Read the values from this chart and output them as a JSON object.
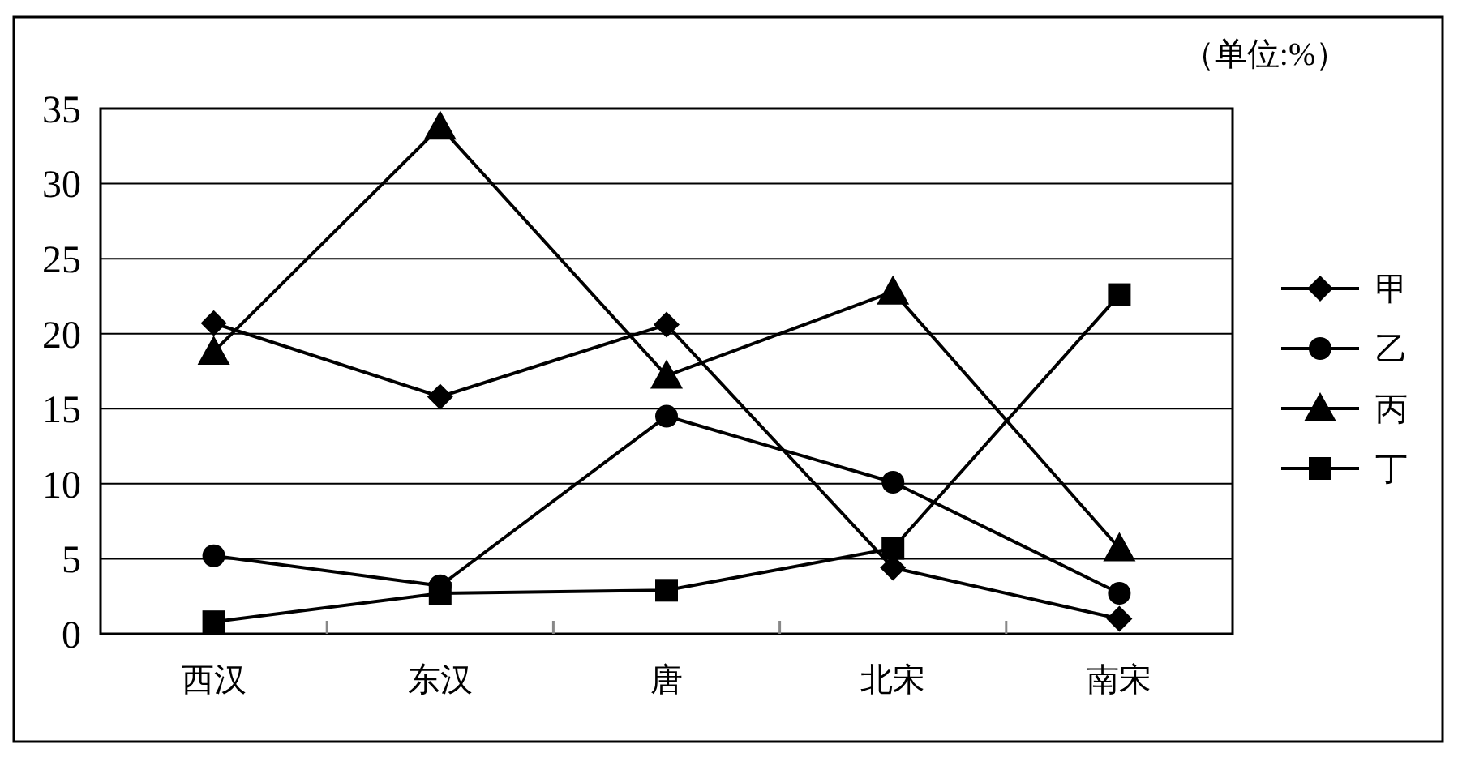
{
  "chart_data": {
    "type": "line",
    "categories": [
      "西汉",
      "东汉",
      "唐",
      "北宋",
      "南宋"
    ],
    "series": [
      {
        "name": "甲",
        "color": "#000000",
        "marker": "diamond",
        "values": [
          20.7,
          15.8,
          20.6,
          4.4,
          1.0
        ]
      },
      {
        "name": "乙",
        "color": "#000000",
        "marker": "circle",
        "values": [
          5.2,
          3.2,
          14.5,
          10.1,
          2.7
        ]
      },
      {
        "name": "丙",
        "color": "#000000",
        "marker": "triangle",
        "values": [
          18.8,
          33.8,
          17.2,
          22.8,
          5.7
        ]
      },
      {
        "name": "丁",
        "color": "#000000",
        "marker": "square",
        "values": [
          0.8,
          2.7,
          2.9,
          5.7,
          22.6
        ]
      }
    ],
    "ylim": [
      0,
      35
    ],
    "yticks": [
      0,
      5,
      10,
      15,
      20,
      25,
      30,
      35
    ],
    "grid": "y",
    "legend": "right",
    "line_style": "solid",
    "annotations": [
      "（单位:%）"
    ]
  }
}
